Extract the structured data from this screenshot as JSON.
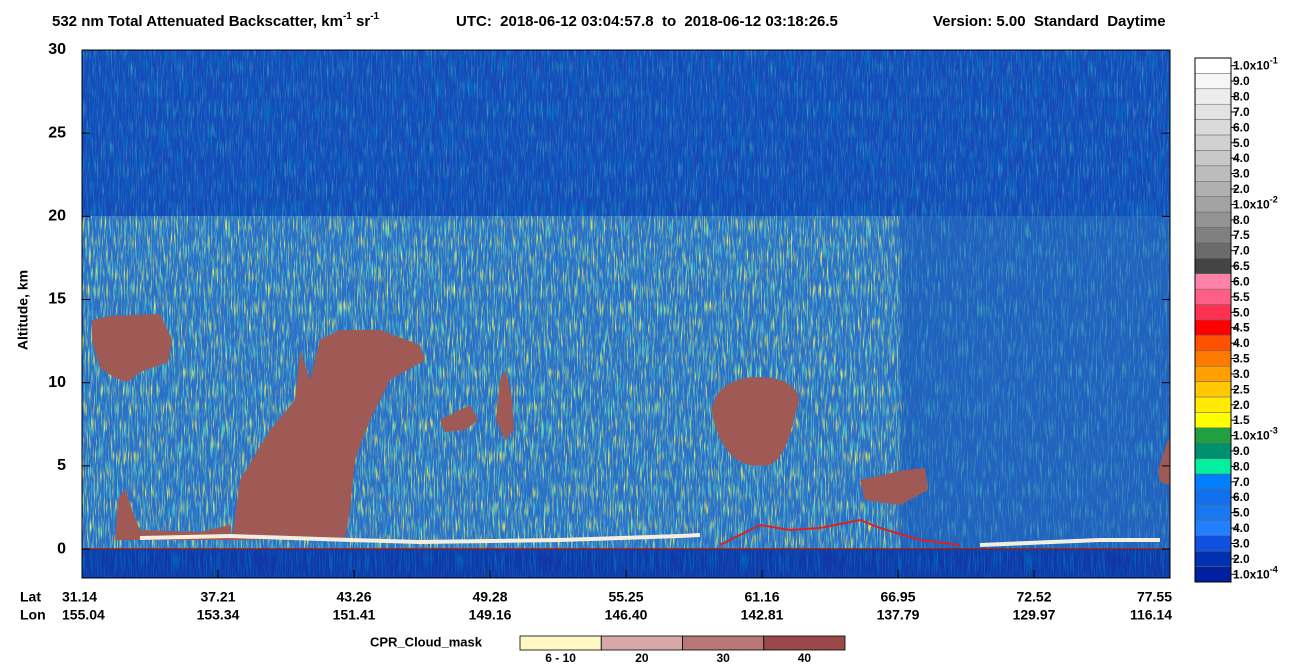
{
  "title": {
    "main": "532 nm Total Attenuated Backscatter, km",
    "exp1": "-1",
    "unit2": " sr",
    "exp2": "-1",
    "utc": "UTC:  2018-06-12 03:04:57.8  to  2018-06-12 03:18:26.5",
    "version": "Version: 5.00  Standard  Daytime"
  },
  "plot": {
    "ylabel": "Altitude, km",
    "ylim": [
      -1.74,
      30
    ],
    "yticks": [
      0,
      5,
      10,
      15,
      20,
      25,
      30
    ]
  },
  "xaxis": {
    "lat_label": "Lat",
    "lon_label": "Lon",
    "lat": [
      "31.14",
      "37.21",
      "43.26",
      "49.28",
      "55.25",
      "61.16",
      "66.95",
      "72.52",
      "77.55"
    ],
    "lon": [
      "155.04",
      "153.34",
      "151.41",
      "149.16",
      "146.40",
      "142.81",
      "137.79",
      "129.97",
      "116.14"
    ]
  },
  "colorbar": [
    {
      "label": "1.0x10",
      "exp": "-1",
      "color": "#ffffff"
    },
    {
      "label": "9.0",
      "color": "#f6f6f6"
    },
    {
      "label": "8.0",
      "color": "#ededed"
    },
    {
      "label": "7.0",
      "color": "#e3e3e3"
    },
    {
      "label": "6.0",
      "color": "#dadada"
    },
    {
      "label": "5.0",
      "color": "#d1d1d1"
    },
    {
      "label": "4.0",
      "color": "#c8c8c8"
    },
    {
      "label": "3.0",
      "color": "#bcbcbc"
    },
    {
      "label": "2.0",
      "color": "#b0b0b0"
    },
    {
      "label": "1.0x10",
      "exp": "-2",
      "color": "#a3a3a3"
    },
    {
      "label": "8.0",
      "color": "#939393"
    },
    {
      "label": "7.5",
      "color": "#808080"
    },
    {
      "label": "7.0",
      "color": "#6b6b6b"
    },
    {
      "label": "6.5",
      "color": "#444444"
    },
    {
      "label": "6.0",
      "color": "#ff80a8"
    },
    {
      "label": "5.5",
      "color": "#ff5f86"
    },
    {
      "label": "5.0",
      "color": "#ff3050"
    },
    {
      "label": "4.5",
      "color": "#ff0000"
    },
    {
      "label": "4.0",
      "color": "#ff5000"
    },
    {
      "label": "3.5",
      "color": "#ff7a00"
    },
    {
      "label": "3.0",
      "color": "#ffa000"
    },
    {
      "label": "2.5",
      "color": "#ffc800"
    },
    {
      "label": "2.0",
      "color": "#ffea00"
    },
    {
      "label": "1.5",
      "color": "#ffff00"
    },
    {
      "label": "1.0x10",
      "exp": "-3",
      "color": "#20a040"
    },
    {
      "label": "9.0",
      "color": "#009070"
    },
    {
      "label": "8.0",
      "color": "#00f0a0"
    },
    {
      "label": "7.0",
      "color": "#0080ff"
    },
    {
      "label": "6.0",
      "color": "#1070ee"
    },
    {
      "label": "5.0",
      "color": "#1878f0"
    },
    {
      "label": "4.0",
      "color": "#2080ff"
    },
    {
      "label": "3.0",
      "color": "#1050e0"
    },
    {
      "label": "2.0",
      "color": "#0030b0"
    },
    {
      "label": "1.0x10",
      "exp": "-4",
      "color": "#0020a0"
    }
  ],
  "cpr_legend": {
    "title": "CPR_Cloud_mask",
    "items": [
      {
        "label": "6 - 10",
        "color": "#fdf8c4"
      },
      {
        "label": "20",
        "color": "#d8a8a8"
      },
      {
        "label": "30",
        "color": "#b87878"
      },
      {
        "label": "40",
        "color": "#9a4848"
      }
    ]
  }
}
